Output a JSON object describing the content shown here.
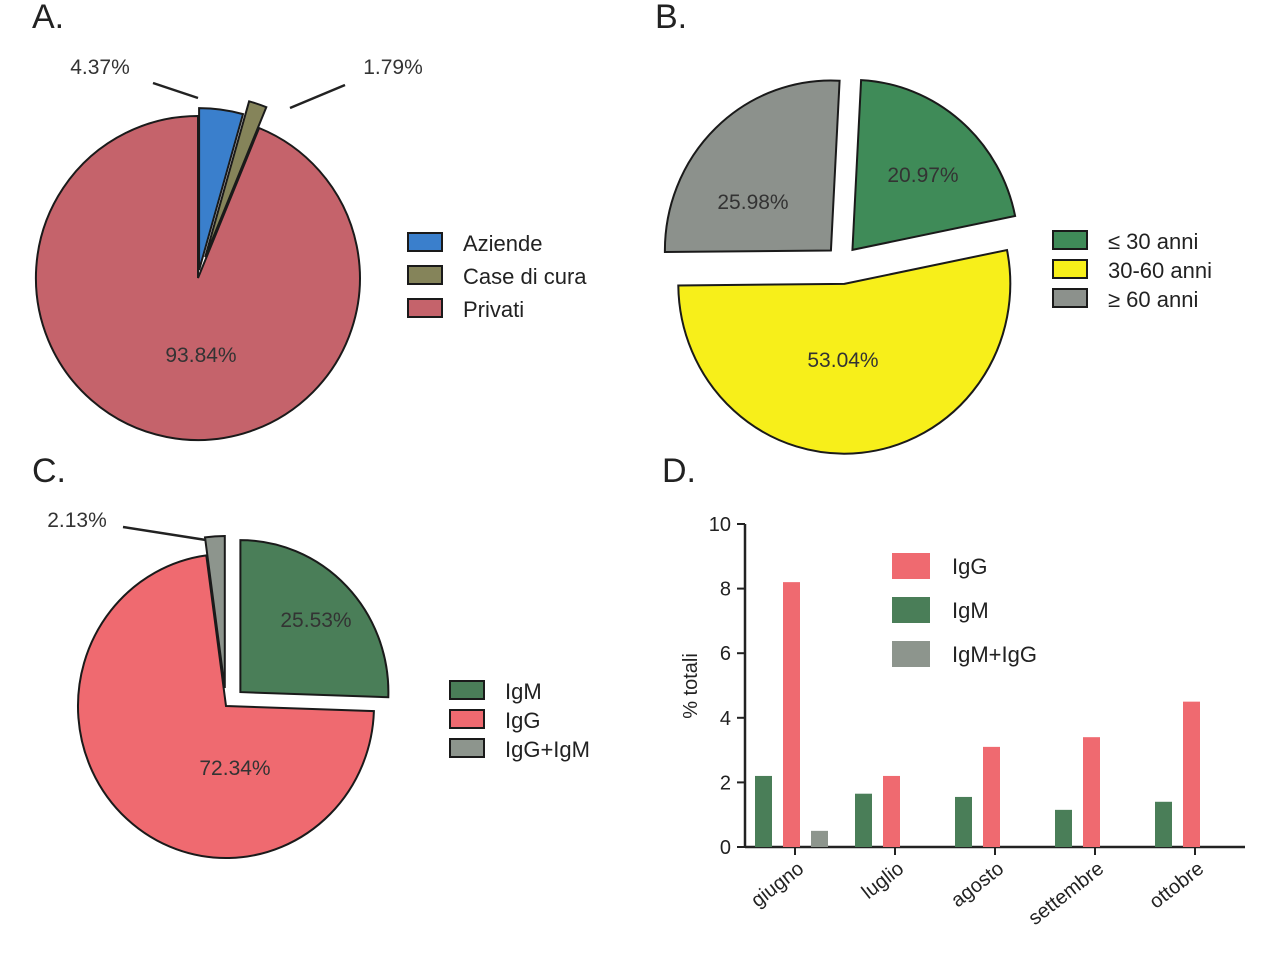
{
  "panels": {
    "a": "A.",
    "b": "B.",
    "c": "C.",
    "d": "D."
  },
  "chart_data": [
    {
      "type": "pie",
      "panel": "A.",
      "slices": [
        {
          "label": "Aziende",
          "value": 4.37,
          "display": "4.37%",
          "color": "#3a7fcc"
        },
        {
          "label": "Case di cura",
          "value": 1.79,
          "display": "1.79%",
          "color": "#85845a"
        },
        {
          "label": "Privati",
          "value": 93.84,
          "display": "93.84%",
          "color": "#c5636b"
        }
      ]
    },
    {
      "type": "pie",
      "panel": "B.",
      "slices": [
        {
          "label": "≤ 30 anni",
          "value": 20.97,
          "display": "20.97%",
          "color": "#3f8b58"
        },
        {
          "label": "30-60 anni",
          "value": 53.04,
          "display": "53.04%",
          "color": "#f7ef1a"
        },
        {
          "label": "≥ 60 anni",
          "value": 25.98,
          "display": "25.98%",
          "color": "#8c918c"
        }
      ]
    },
    {
      "type": "pie",
      "panel": "C.",
      "slices": [
        {
          "label": "IgM",
          "value": 25.53,
          "display": "25.53%",
          "color": "#4a7e58"
        },
        {
          "label": "IgG",
          "value": 72.34,
          "display": "72.34%",
          "color": "#ef6a70"
        },
        {
          "label": "IgG+IgM",
          "value": 2.13,
          "display": "2.13%",
          "color": "#8d958d"
        }
      ]
    },
    {
      "type": "bar",
      "panel": "D.",
      "categories": [
        "giugno",
        "luglio",
        "agosto",
        "settembre",
        "ottobre"
      ],
      "series": [
        {
          "name": "IgG",
          "values": [
            8.2,
            2.2,
            3.1,
            3.4,
            4.5
          ],
          "color": "#ef6a70"
        },
        {
          "name": "IgM",
          "values": [
            2.2,
            1.65,
            1.55,
            1.15,
            1.4
          ],
          "color": "#4a7e58"
        },
        {
          "name": "IgM+IgG",
          "values": [
            0.5,
            0,
            0,
            0,
            0
          ],
          "color": "#8d958d"
        }
      ],
      "ylabel": "% totali",
      "ylim": [
        0,
        10
      ],
      "yticks": [
        0,
        2,
        4,
        6,
        8,
        10
      ]
    }
  ]
}
